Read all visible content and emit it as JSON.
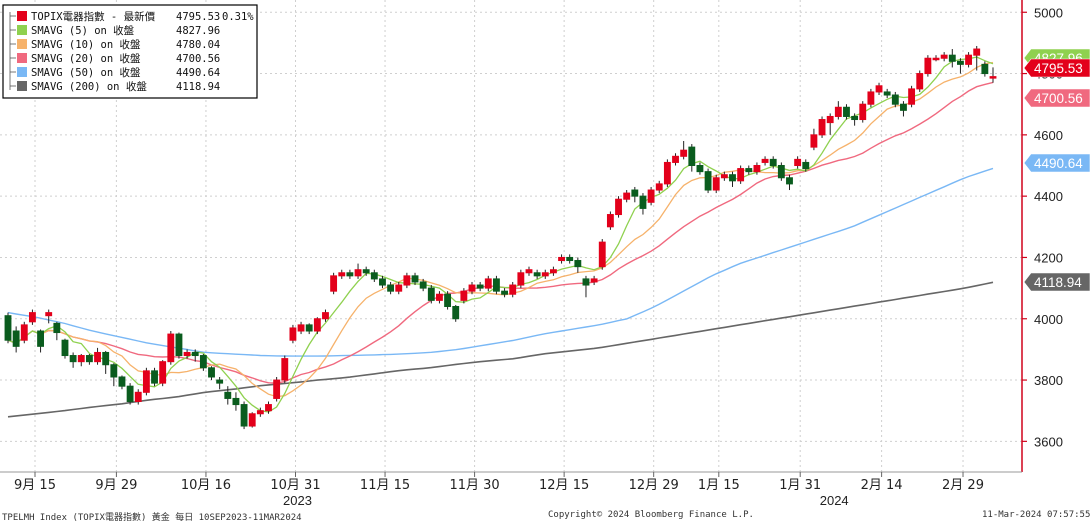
{
  "legend": {
    "items": [
      {
        "label": "TOPIX電器指數 - 最新價",
        "value": "4795.53",
        "extra": "0.31%",
        "color": "#e3001b"
      },
      {
        "label": "SMAVG (5)  on 收盤",
        "value": "4827.96",
        "color": "#8fd14f"
      },
      {
        "label": "SMAVG (10)  on 收盤",
        "value": "4780.04",
        "color": "#f6b26b"
      },
      {
        "label": "SMAVG (20)  on 收盤",
        "value": "4700.56",
        "color": "#f0697f"
      },
      {
        "label": "SMAVG (50)  on 收盤",
        "value": "4490.64",
        "color": "#7ab8f5"
      },
      {
        "label": "SMAVG (200)  on 收盤",
        "value": "4118.94",
        "color": "#666666"
      }
    ]
  },
  "footer": {
    "left": "TPELMH Index (TOPIX電器指數) 黃金  每日 10SEP2023-11MAR2024",
    "center": "Copyright© 2024 Bloomberg Finance L.P.",
    "right": "11-Mar-2024 07:57:55"
  },
  "chart_data": {
    "type": "candlestick",
    "title": "",
    "ylim": [
      3500,
      5040
    ],
    "y_ticks": [
      3600,
      3800,
      4000,
      4200,
      4400,
      4600,
      4800,
      5000
    ],
    "x_ticks": [
      "9月 15",
      "9月 29",
      "10月 16",
      "10月 31",
      "11月 15",
      "11月 30",
      "12月 15",
      "12月 29",
      "1月 15",
      "1月 31",
      "2月 14",
      "2月 29"
    ],
    "year_labels": [
      "2023",
      "2024"
    ],
    "colors": {
      "up": "#e3001b",
      "down": "#0a5c1e",
      "axis": "#d0021b"
    },
    "candles": [
      [
        4010,
        3930,
        4020,
        3920
      ],
      [
        3960,
        3910,
        3975,
        3890
      ],
      [
        3930,
        3980,
        3990,
        3920
      ],
      [
        3990,
        4020,
        4030,
        3980
      ],
      [
        3960,
        3910,
        3965,
        3890
      ],
      [
        4010,
        4020,
        4030,
        3985
      ],
      [
        3985,
        3955,
        3990,
        3930
      ],
      [
        3930,
        3880,
        3935,
        3870
      ],
      [
        3880,
        3860,
        3890,
        3840
      ],
      [
        3860,
        3880,
        3885,
        3845
      ],
      [
        3880,
        3860,
        3885,
        3850
      ],
      [
        3860,
        3890,
        3905,
        3850
      ],
      [
        3890,
        3850,
        3895,
        3820
      ],
      [
        3850,
        3810,
        3855,
        3780
      ],
      [
        3810,
        3780,
        3815,
        3770
      ],
      [
        3780,
        3730,
        3790,
        3720
      ],
      [
        3730,
        3760,
        3770,
        3720
      ],
      [
        3760,
        3830,
        3840,
        3750
      ],
      [
        3830,
        3790,
        3840,
        3780
      ],
      [
        3790,
        3860,
        3865,
        3780
      ],
      [
        3860,
        3950,
        3960,
        3850
      ],
      [
        3950,
        3880,
        3955,
        3870
      ],
      [
        3880,
        3890,
        3900,
        3870
      ],
      [
        3890,
        3880,
        3900,
        3860
      ],
      [
        3880,
        3840,
        3885,
        3830
      ],
      [
        3840,
        3810,
        3845,
        3800
      ],
      [
        3800,
        3790,
        3810,
        3770
      ],
      [
        3760,
        3740,
        3780,
        3720
      ],
      [
        3740,
        3720,
        3760,
        3700
      ],
      [
        3720,
        3650,
        3730,
        3640
      ],
      [
        3650,
        3690,
        3695,
        3645
      ],
      [
        3690,
        3700,
        3710,
        3680
      ],
      [
        3700,
        3720,
        3730,
        3690
      ],
      [
        3740,
        3800,
        3810,
        3730
      ],
      [
        3800,
        3870,
        3880,
        3790
      ],
      [
        3930,
        3970,
        3980,
        3920
      ],
      [
        3960,
        3980,
        3990,
        3950
      ],
      [
        3980,
        3960,
        3985,
        3950
      ],
      [
        3960,
        4000,
        4005,
        3950
      ],
      [
        4000,
        4020,
        4030,
        3990
      ],
      [
        4090,
        4140,
        4150,
        4080
      ],
      [
        4140,
        4150,
        4160,
        4130
      ],
      [
        4150,
        4140,
        4160,
        4130
      ],
      [
        4140,
        4160,
        4180,
        4130
      ],
      [
        4160,
        4150,
        4170,
        4140
      ],
      [
        4150,
        4130,
        4160,
        4120
      ],
      [
        4130,
        4110,
        4140,
        4100
      ],
      [
        4110,
        4090,
        4120,
        4080
      ],
      [
        4090,
        4110,
        4120,
        4080
      ],
      [
        4110,
        4140,
        4150,
        4100
      ],
      [
        4140,
        4120,
        4150,
        4110
      ],
      [
        4120,
        4100,
        4130,
        4090
      ],
      [
        4100,
        4060,
        4110,
        4050
      ],
      [
        4060,
        4080,
        4090,
        4050
      ],
      [
        4080,
        4040,
        4090,
        4030
      ],
      [
        4040,
        4000,
        4045,
        3990
      ],
      [
        4060,
        4090,
        4100,
        4050
      ],
      [
        4090,
        4110,
        4120,
        4080
      ],
      [
        4110,
        4100,
        4120,
        4090
      ],
      [
        4100,
        4130,
        4140,
        4090
      ],
      [
        4130,
        4090,
        4140,
        4080
      ],
      [
        4090,
        4080,
        4100,
        4070
      ],
      [
        4080,
        4110,
        4120,
        4070
      ],
      [
        4110,
        4150,
        4160,
        4100
      ],
      [
        4150,
        4160,
        4170,
        4140
      ],
      [
        4150,
        4140,
        4160,
        4130
      ],
      [
        4140,
        4150,
        4160,
        4130
      ],
      [
        4150,
        4160,
        4170,
        4140
      ],
      [
        4190,
        4200,
        4210,
        4180
      ],
      [
        4200,
        4190,
        4210,
        4180
      ],
      [
        4190,
        4170,
        4200,
        4150
      ],
      [
        4130,
        4110,
        4140,
        4070
      ],
      [
        4120,
        4130,
        4140,
        4110
      ],
      [
        4170,
        4250,
        4260,
        4160
      ],
      [
        4300,
        4340,
        4350,
        4290
      ],
      [
        4340,
        4390,
        4400,
        4330
      ],
      [
        4390,
        4410,
        4420,
        4380
      ],
      [
        4420,
        4400,
        4430,
        4380
      ],
      [
        4400,
        4360,
        4410,
        4340
      ],
      [
        4380,
        4420,
        4430,
        4370
      ],
      [
        4420,
        4440,
        4450,
        4410
      ],
      [
        4440,
        4510,
        4520,
        4430
      ],
      [
        4510,
        4530,
        4540,
        4500
      ],
      [
        4530,
        4550,
        4580,
        4520
      ],
      [
        4560,
        4500,
        4570,
        4480
      ],
      [
        4500,
        4480,
        4510,
        4470
      ],
      [
        4480,
        4420,
        4490,
        4410
      ],
      [
        4420,
        4460,
        4470,
        4410
      ],
      [
        4460,
        4470,
        4480,
        4450
      ],
      [
        4470,
        4450,
        4480,
        4430
      ],
      [
        4450,
        4490,
        4500,
        4440
      ],
      [
        4490,
        4480,
        4500,
        4470
      ],
      [
        4480,
        4500,
        4510,
        4470
      ],
      [
        4510,
        4520,
        4530,
        4500
      ],
      [
        4520,
        4500,
        4530,
        4490
      ],
      [
        4500,
        4460,
        4510,
        4450
      ],
      [
        4460,
        4440,
        4470,
        4420
      ],
      [
        4500,
        4520,
        4530,
        4490
      ],
      [
        4510,
        4490,
        4520,
        4480
      ],
      [
        4560,
        4600,
        4620,
        4550
      ],
      [
        4600,
        4650,
        4660,
        4590
      ],
      [
        4640,
        4660,
        4670,
        4600
      ],
      [
        4660,
        4690,
        4710,
        4650
      ],
      [
        4690,
        4660,
        4700,
        4650
      ],
      [
        4660,
        4650,
        4670,
        4630
      ],
      [
        4650,
        4700,
        4710,
        4640
      ],
      [
        4700,
        4740,
        4750,
        4690
      ],
      [
        4740,
        4760,
        4770,
        4730
      ],
      [
        4740,
        4730,
        4750,
        4720
      ],
      [
        4730,
        4700,
        4740,
        4690
      ],
      [
        4700,
        4680,
        4710,
        4660
      ],
      [
        4700,
        4750,
        4760,
        4690
      ],
      [
        4750,
        4800,
        4810,
        4740
      ],
      [
        4800,
        4850,
        4860,
        4790
      ],
      [
        4850,
        4850,
        4860,
        4840
      ],
      [
        4850,
        4860,
        4870,
        4840
      ],
      [
        4860,
        4840,
        4880,
        4820
      ],
      [
        4840,
        4830,
        4850,
        4800
      ],
      [
        4830,
        4860,
        4870,
        4820
      ],
      [
        4860,
        4880,
        4890,
        4810
      ],
      [
        4830,
        4800,
        4840,
        4790
      ],
      [
        4790,
        4790,
        4820,
        4770
      ]
    ],
    "ma_values": {
      "SMAVG (5)": 4827.96,
      "SMAVG (10)": 4780.04,
      "SMAVG (20)": 4700.56,
      "SMAVG (50)": 4490.64,
      "SMAVG (200)": 4118.94
    },
    "sma200": [
      3680,
      3690,
      3700,
      3712,
      3722,
      3735,
      3745,
      3760,
      3770,
      3782,
      3790,
      3800,
      3808,
      3820,
      3832,
      3840,
      3852,
      3862,
      3870,
      3885,
      3895,
      3905,
      3920,
      3935,
      3950,
      3965,
      3980,
      3995,
      4010,
      4025,
      4040,
      4055,
      4070,
      4085,
      4100,
      4118.94
    ],
    "sma50": [
      4020,
      4005,
      3985,
      3960,
      3940,
      3920,
      3905,
      3890,
      3885,
      3880,
      3878,
      3878,
      3880,
      3882,
      3885,
      3890,
      3900,
      3915,
      3930,
      3950,
      3965,
      3980,
      4000,
      4040,
      4090,
      4140,
      4180,
      4210,
      4240,
      4270,
      4300,
      4340,
      4380,
      4420,
      4460,
      4490.64
    ]
  }
}
